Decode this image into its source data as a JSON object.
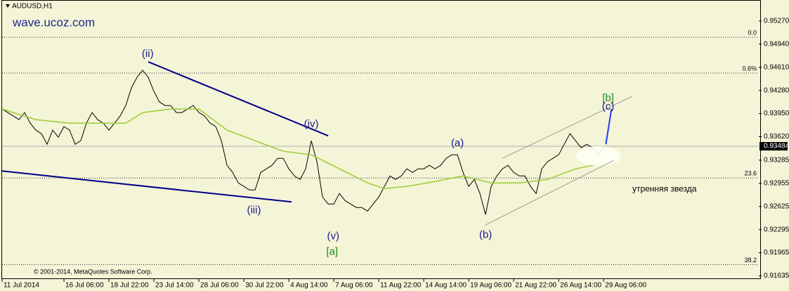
{
  "chart_data": {
    "type": "line",
    "title": "AUDUSD,H1",
    "watermark": "wave.ucoz.com",
    "copyright": "© 2001-2014, MetaQuotes Software Corp.",
    "xlim": [
      0,
      134.6
    ],
    "ylim": [
      0.9159,
      0.9557
    ],
    "xticks": [
      {
        "value": 0,
        "label": "11 Jul 2014"
      },
      {
        "value": 11,
        "label": "16 Jul 06:00"
      },
      {
        "value": 19,
        "label": "18 Jul 22:00"
      },
      {
        "value": 27,
        "label": "23 Jul 14:00"
      },
      {
        "value": 35,
        "label": "28 Jul 06:00"
      },
      {
        "value": 43,
        "label": "30 Jul 22:00"
      },
      {
        "value": 51,
        "label": "4 Aug 14:00"
      },
      {
        "value": 59,
        "label": "7 Aug 06:00"
      },
      {
        "value": 67,
        "label": "11 Aug 22:00"
      },
      {
        "value": 75,
        "label": "14 Aug 14:00"
      },
      {
        "value": 83,
        "label": "19 Aug 06:00"
      },
      {
        "value": 91,
        "label": "21 Aug 22:00"
      },
      {
        "value": 99,
        "label": "26 Aug 14:00"
      },
      {
        "value": 107,
        "label": "29 Aug 06:00"
      }
    ],
    "yticks": [
      {
        "value": 0.9527,
        "label": "0.95270"
      },
      {
        "value": 0.9494,
        "label": "0.94940"
      },
      {
        "value": 0.9461,
        "label": "0.94610"
      },
      {
        "value": 0.9428,
        "label": "0.94280"
      },
      {
        "value": 0.9395,
        "label": "0.93950"
      },
      {
        "value": 0.9362,
        "label": "0.93620"
      },
      0.93285,
      0.92955,
      0.92625,
      0.92295,
      0.91965,
      0.91635
    ],
    "current_price": 0.93484,
    "x": [
      0,
      1,
      2,
      3,
      4,
      5,
      6,
      7,
      8,
      9,
      10,
      11,
      12,
      13,
      14,
      15,
      16,
      17,
      18,
      19,
      20,
      21,
      22,
      23,
      24,
      25,
      26,
      27,
      28,
      29,
      30,
      31,
      32,
      33,
      34,
      35,
      36,
      37,
      38,
      39,
      40,
      41,
      42,
      43,
      44,
      45,
      46,
      47,
      48,
      49,
      50,
      51,
      52,
      53,
      54,
      55,
      56,
      57,
      58,
      59,
      60,
      61,
      62,
      63,
      64,
      65,
      66,
      67,
      68,
      69,
      70,
      71,
      72,
      73,
      74,
      75,
      76,
      77,
      78,
      79,
      80,
      81,
      82,
      83,
      84,
      85,
      86,
      87,
      88,
      89,
      90,
      91,
      92,
      93,
      94,
      95,
      96,
      97,
      98,
      99,
      100,
      101,
      102,
      103,
      104,
      105,
      106,
      107
    ],
    "series": [
      {
        "color": "#000000",
        "values": [
          0.94015,
          0.93965,
          0.93915,
          0.93864,
          0.93965,
          0.93814,
          0.93714,
          0.93664,
          0.93513,
          0.93714,
          0.93613,
          0.93764,
          0.93714,
          0.93513,
          0.93563,
          0.93814,
          0.93965,
          0.93864,
          0.93814,
          0.93714,
          0.93814,
          0.93915,
          0.94065,
          0.94316,
          0.94467,
          0.94567,
          0.94467,
          0.94266,
          0.94115,
          0.94065,
          0.94065,
          0.93965,
          0.93965,
          0.94015,
          0.94065,
          0.93965,
          0.93915,
          0.93814,
          0.93764,
          0.93563,
          0.93212,
          0.93111,
          0.92961,
          0.92911,
          0.9286,
          0.9286,
          0.93111,
          0.93162,
          0.93212,
          0.93312,
          0.93312,
          0.93162,
          0.93061,
          0.93011,
          0.93162,
          0.93563,
          0.93262,
          0.9276,
          0.9266,
          0.9266,
          0.9281,
          0.9271,
          0.9266,
          0.9261,
          0.9261,
          0.92559,
          0.9266,
          0.9276,
          0.92911,
          0.93061,
          0.93011,
          0.93061,
          0.93162,
          0.93111,
          0.93162,
          0.93162,
          0.93212,
          0.93162,
          0.93212,
          0.93312,
          0.93362,
          0.93362,
          0.93111,
          0.92911,
          0.93011,
          0.9281,
          0.92509,
          0.92911,
          0.93061,
          0.93162,
          0.93212,
          0.93111,
          0.93061,
          0.93061,
          0.92911,
          0.9281,
          0.93162,
          0.93262,
          0.93312,
          0.93362,
          0.93513,
          0.93664,
          0.93563,
          0.93463,
          0.93513,
          0.93463,
          0.93362,
          0.93463
        ]
      },
      {
        "color": "#9acd32",
        "x": [
          0,
          6,
          12,
          22,
          25,
          30,
          35,
          40,
          45,
          50,
          55,
          60,
          65,
          68,
          72,
          77,
          82,
          87,
          92,
          97,
          102,
          107
        ],
        "values": [
          0.94015,
          0.93864,
          0.93814,
          0.93814,
          0.93965,
          0.94015,
          0.94015,
          0.93714,
          0.93563,
          0.93413,
          0.93362,
          0.93162,
          0.92961,
          0.9288,
          0.92911,
          0.92981,
          0.93061,
          0.92961,
          0.92961,
          0.93011,
          0.93162,
          0.93242
        ]
      }
    ],
    "fib_levels": [
      {
        "value": 0.95039,
        "label": "0.0"
      },
      {
        "value": 0.94527,
        "label": "0.6%"
      },
      {
        "value": 0.93031,
        "label": "23.6"
      },
      {
        "value": 0.91796,
        "label": "38.2"
      }
    ],
    "trendlines": [
      {
        "color": "#00008b",
        "x": [
          26,
          58
        ],
        "y": [
          0.94688,
          0.93633
        ]
      },
      {
        "color": "#00008b",
        "x": [
          0,
          51.5
        ],
        "y": [
          0.93131,
          0.9269
        ]
      },
      {
        "color": "#1e3cff",
        "x": [
          107.4,
          108.4
        ],
        "y": [
          0.93513,
          0.94015
        ]
      },
      {
        "color": "#9a9a9a",
        "x": [
          89,
          112.1
        ],
        "y": [
          0.93312,
          0.94196
        ]
      },
      {
        "color": "#9a9a9a",
        "x": [
          85.9,
          108.8
        ],
        "y": [
          0.92358,
          0.93282
        ]
      }
    ],
    "annotations": [
      {
        "text": "(ii)",
        "x": 25.9,
        "y": 0.94798,
        "color": "#1a1a8c"
      },
      {
        "text": "(iii)",
        "x": 44.8,
        "y": 0.92569,
        "color": "#1a1a8c"
      },
      {
        "text": "(iv)",
        "x": 55,
        "y": 0.93794,
        "color": "#1a1a8c"
      },
      {
        "text": "(v)",
        "x": 58.9,
        "y": 0.92198,
        "color": "#1a1a8c"
      },
      {
        "text": "[a]",
        "x": 58.7,
        "y": 0.91977,
        "color": "#1a8a1a"
      },
      {
        "text": "(a)",
        "x": 81,
        "y": 0.93523,
        "color": "#1a1a8c"
      },
      {
        "text": "(b)",
        "x": 86,
        "y": 0.92218,
        "color": "#1a1a8c"
      },
      {
        "text": "[b]",
        "x": 107.8,
        "y": 0.94165,
        "color": "#1a8a1a"
      },
      {
        "text": "(c)",
        "x": 107.8,
        "y": 0.94045,
        "color": "#1a1a8c"
      },
      {
        "text": "утренняя звезда",
        "x": 112.1,
        "y": 0.9287,
        "color": "#000000"
      }
    ]
  }
}
